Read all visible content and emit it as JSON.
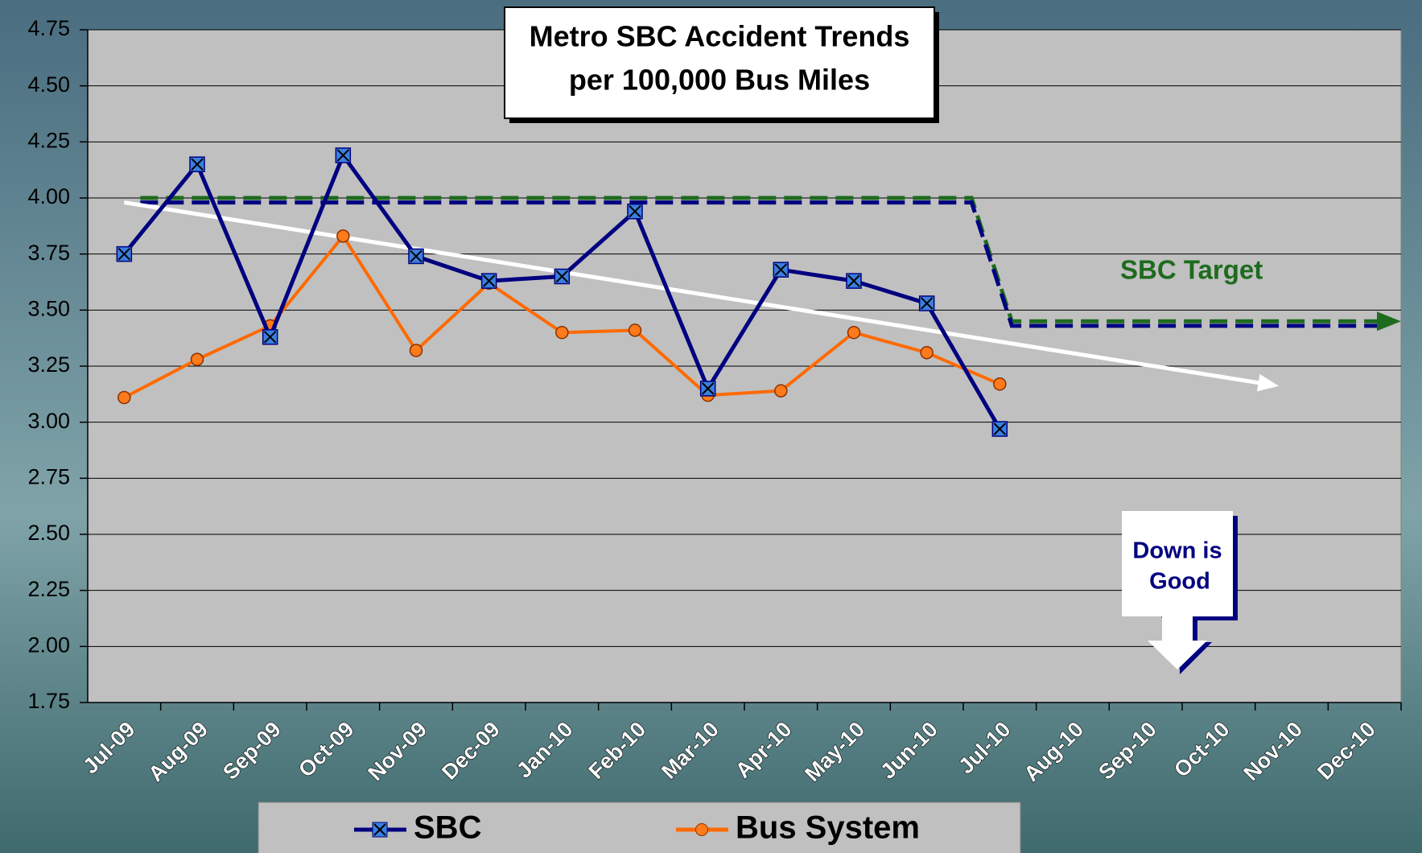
{
  "chart_data": {
    "type": "line",
    "title_lines": [
      "Metro SBC Accident Trends",
      "per 100,000 Bus Miles"
    ],
    "categories": [
      "Jul-09",
      "Aug-09",
      "Sep-09",
      "Oct-09",
      "Nov-09",
      "Dec-09",
      "Jan-10",
      "Feb-10",
      "Mar-10",
      "Apr-10",
      "May-10",
      "Jun-10",
      "Jul-10",
      "Aug-10",
      "Sep-10",
      "Oct-10",
      "Nov-10",
      "Dec-10"
    ],
    "series": [
      {
        "name": "SBC",
        "color": "#000080",
        "marker_color": "#3a7fe0",
        "values": [
          3.75,
          4.15,
          3.38,
          4.19,
          3.74,
          3.63,
          3.65,
          3.94,
          3.15,
          3.68,
          3.63,
          3.53,
          2.97,
          null,
          null,
          null,
          null,
          null
        ]
      },
      {
        "name": "Bus System",
        "color": "#ff6a00",
        "marker_color": "#ff7a1a",
        "values": [
          3.11,
          3.28,
          3.43,
          3.83,
          3.32,
          3.62,
          3.4,
          3.41,
          3.12,
          3.14,
          3.4,
          3.31,
          3.17,
          null,
          null,
          null,
          null,
          null
        ]
      }
    ],
    "target_lines": [
      {
        "color": "#1e6b1e",
        "before": 4.0,
        "after": 3.45
      },
      {
        "color": "#000080",
        "before": 3.98,
        "after": 3.43
      }
    ],
    "target_label": "SBC Target",
    "trend": {
      "color": "#ffffff",
      "start": 3.98,
      "end": 3.17
    },
    "annotation_lines": [
      "Down is",
      "Good"
    ],
    "ylim": [
      1.75,
      4.75
    ],
    "yticks": [
      1.75,
      {
        "value": 2.0,
        "label": "2.00"
      },
      2.25,
      {
        "value": 2.5,
        "label": "2.50"
      },
      2.75,
      {
        "value": 3.0,
        "label": "3.00"
      },
      3.25,
      {
        "value": 3.5,
        "label": "3.50"
      },
      3.75,
      {
        "value": 4.0,
        "label": "4.00"
      },
      4.25,
      {
        "value": 4.5,
        "label": "4.50"
      },
      4.75
    ],
    "grid": true
  }
}
